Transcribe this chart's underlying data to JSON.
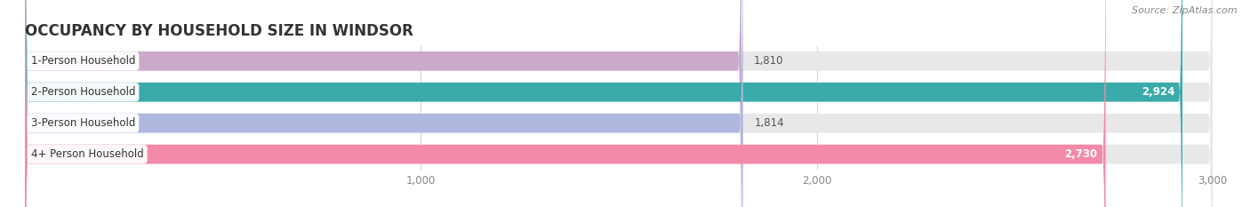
{
  "title": "OCCUPANCY BY HOUSEHOLD SIZE IN WINDSOR",
  "source": "Source: ZipAtlas.com",
  "categories": [
    "1-Person Household",
    "2-Person Household",
    "3-Person Household",
    "4+ Person Household"
  ],
  "values": [
    1810,
    2924,
    1814,
    2730
  ],
  "bar_colors": [
    "#cbaacb",
    "#3aabaa",
    "#b0b8e0",
    "#f48aaa"
  ],
  "bar_bg_color": "#e8e8e8",
  "xlim": [
    0,
    3000
  ],
  "xticks": [
    1000,
    2000,
    3000
  ],
  "xtick_labels": [
    "1,000",
    "2,000",
    "3,000"
  ],
  "title_fontsize": 12,
  "label_fontsize": 8.5,
  "value_fontsize": 8.5,
  "source_fontsize": 8
}
